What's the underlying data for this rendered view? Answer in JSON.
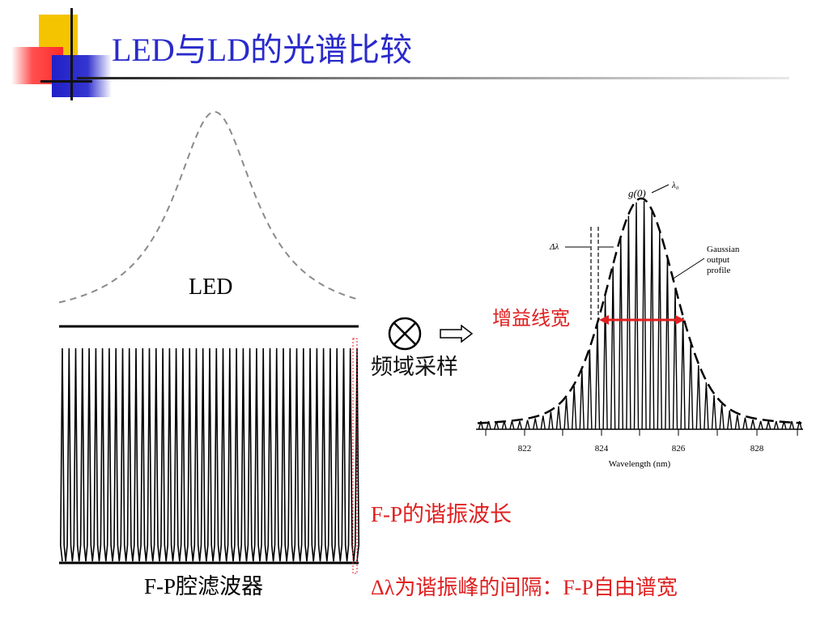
{
  "slide": {
    "title": "LED与LD的光谱比较",
    "led_label": "LED",
    "sampling_label": "频域采样",
    "gain_width_label": "增益线宽",
    "fp_filter_caption": {
      "latin": "F-P",
      "cjk": "腔滤波器"
    },
    "fp_wavelength_note": {
      "latin": "F-P",
      "cjk": "的谐振波长"
    },
    "fp_spacing_note": {
      "prefix": "Δλ",
      "cjk1": "为谐振峰的间隔：",
      "latin": "F-P",
      "cjk2": "自由谱宽"
    }
  },
  "ld_figure": {
    "g0_label": "g(0)",
    "lambda0_label": "λ₀",
    "delta_lambda_label": "Δλ",
    "gaussian_label_lines": [
      "Gaussian",
      "output",
      "profile"
    ],
    "xlabel": "Wavelength (nm)",
    "xticks": [
      "822",
      "824",
      "826",
      "828"
    ]
  },
  "colors": {
    "title": "#2a2acc",
    "annotation_red": "#e02020",
    "deco_yellow": "#f5c400",
    "deco_red": "#ff3b3b",
    "deco_blue": "#2020c8"
  },
  "icons": {
    "otimes": "circled-times-icon",
    "arrow": "hollow-right-arrow-icon"
  }
}
